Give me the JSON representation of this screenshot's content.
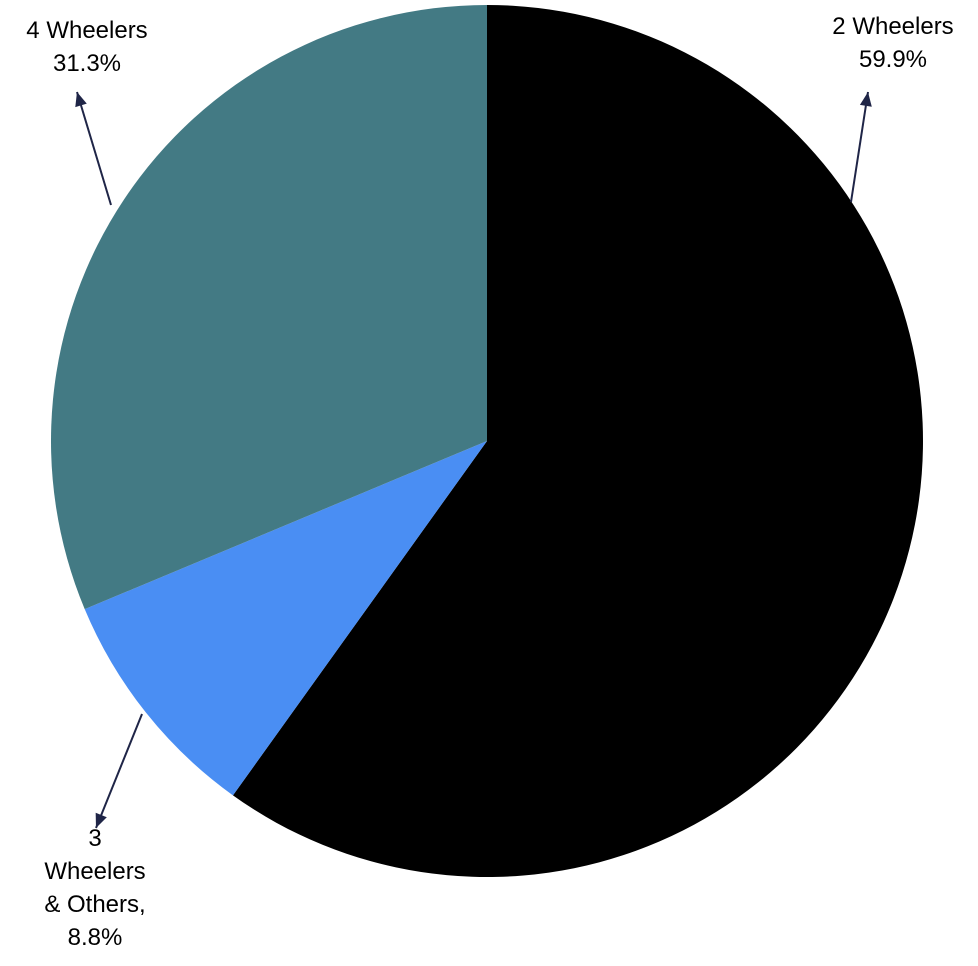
{
  "chart_data": {
    "type": "pie",
    "title": "",
    "start_angle_deg": 0,
    "direction": "clockwise",
    "legend": "none",
    "slices": [
      {
        "label": "2 Wheelers",
        "value": 59.9,
        "display": "59.9%",
        "color": "#000000"
      },
      {
        "label": "3 Wheelers & Others",
        "value": 8.8,
        "display": "8.8%",
        "color": "#4a8ef3"
      },
      {
        "label": "4 Wheelers",
        "value": 31.3,
        "display": "31.3%",
        "color": "#437a84"
      }
    ],
    "label_texts": [
      [
        "2 Wheelers",
        "59.9%"
      ],
      [
        "3",
        "Wheelers",
        "& Others,",
        "8.8%"
      ],
      [
        "4 Wheelers",
        "31.3%"
      ]
    ]
  }
}
